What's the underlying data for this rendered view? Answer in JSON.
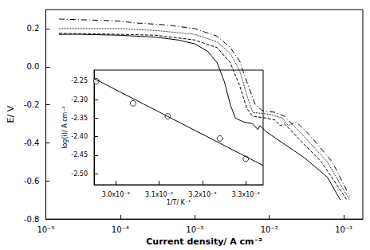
{
  "chart_data": [
    {
      "type": "line",
      "x_label": "Current density/ A cm⁻²",
      "y_label": "E/ V",
      "log": "x",
      "grid": false,
      "xlim": [
        1e-05,
        0.18
      ],
      "xticks": [
        {
          "value": 1e-05,
          "label": "10⁻⁵"
        },
        {
          "value": 0.0001,
          "label": "10⁻⁴"
        },
        {
          "value": 0.001,
          "label": "10⁻³"
        },
        {
          "value": 0.01,
          "label": "10⁻²"
        },
        {
          "value": 0.1,
          "label": "10⁻¹"
        }
      ],
      "ylim": [
        -0.8,
        0.3
      ],
      "yticks": [
        -0.8,
        -0.6,
        -0.4,
        -0.2,
        {
          "value": 0,
          "label": "0.0"
        },
        0.2
      ],
      "series": [
        {
          "color": "#000000",
          "line_style": "solid",
          "x": [
            1.5e-05,
            3e-05,
            0.0001,
            0.0003,
            0.0006,
            0.001,
            0.0015,
            0.002,
            0.0025,
            0.003,
            0.0035,
            0.0045,
            0.006,
            0.007,
            0.0075,
            0.009,
            0.015,
            0.03,
            0.06,
            0.09
          ],
          "values": [
            0.17,
            0.17,
            0.165,
            0.155,
            0.14,
            0.12,
            0.08,
            0.02,
            -0.08,
            -0.2,
            -0.27,
            -0.29,
            -0.3,
            -0.33,
            -0.31,
            -0.34,
            -0.4,
            -0.48,
            -0.58,
            -0.7
          ]
        },
        {
          "color": "#000000",
          "line_style": "dashed",
          "x": [
            1.5e-05,
            0.0001,
            0.0003,
            0.001,
            0.002,
            0.003,
            0.004,
            0.005,
            0.006,
            0.009,
            0.012,
            0.014,
            0.016,
            0.025,
            0.05,
            0.11
          ],
          "values": [
            0.175,
            0.17,
            0.165,
            0.14,
            0.1,
            0.02,
            -0.1,
            -0.22,
            -0.26,
            -0.27,
            -0.28,
            -0.31,
            -0.3,
            -0.38,
            -0.5,
            -0.7
          ]
        },
        {
          "color": "#000000",
          "line_style": "dotted",
          "x": [
            1.5e-05,
            0.0001,
            0.0003,
            0.001,
            0.002,
            0.003,
            0.004,
            0.005,
            0.006,
            0.01,
            0.015,
            0.018,
            0.02,
            0.03,
            0.06,
            0.12
          ],
          "values": [
            0.2,
            0.2,
            0.19,
            0.17,
            0.13,
            0.07,
            -0.02,
            -0.15,
            -0.24,
            -0.25,
            -0.27,
            -0.31,
            -0.3,
            -0.37,
            -0.5,
            -0.7
          ]
        },
        {
          "color": "#000000",
          "line_style": "dashdot",
          "x": [
            1.5e-05,
            0.0001,
            0.00015,
            0.0004,
            0.001,
            0.002,
            0.003,
            0.004,
            0.005,
            0.0065,
            0.008,
            0.012,
            0.016,
            0.02,
            0.023,
            0.035,
            0.07,
            0.12
          ],
          "values": [
            0.25,
            0.24,
            0.23,
            0.22,
            0.2,
            0.16,
            0.1,
            0.03,
            -0.08,
            -0.2,
            -0.23,
            -0.24,
            -0.26,
            -0.3,
            -0.29,
            -0.36,
            -0.5,
            -0.68
          ]
        }
      ]
    },
    {
      "type": "scatter",
      "x_label": "1/T/ K⁻¹",
      "y_label": "log(i)/ A cm⁻²",
      "grid": false,
      "xlim": [
        0.00295,
        0.00334
      ],
      "xticks": [
        {
          "value": 0.003,
          "label": "3.0x10⁻³"
        },
        {
          "value": 0.0031,
          "label": "3.1x10⁻³"
        },
        {
          "value": 0.0032,
          "label": "3.2x10⁻³"
        },
        {
          "value": 0.0033,
          "label": "3.3x10⁻³"
        }
      ],
      "ylim": [
        -2.53,
        -2.22
      ],
      "yticks": [
        {
          "value": -2.5,
          "label": "-2.50"
        },
        -2.45,
        {
          "value": -2.4,
          "label": "-2.40"
        },
        -2.35,
        {
          "value": -2.3,
          "label": "-2.30"
        },
        -2.25
      ],
      "series": [
        {
          "type": "scatter",
          "marker": "circle",
          "color": "#000000",
          "x": [
            0.002955,
            0.00304,
            0.00312,
            0.00324,
            0.0033
          ],
          "values": [
            -2.25,
            -2.31,
            -2.345,
            -2.405,
            -2.46
          ]
        },
        {
          "type": "line",
          "line_style": "solid",
          "color": "#000000",
          "x": [
            0.00295,
            0.00334
          ],
          "values": [
            -2.243,
            -2.478
          ]
        }
      ]
    }
  ]
}
